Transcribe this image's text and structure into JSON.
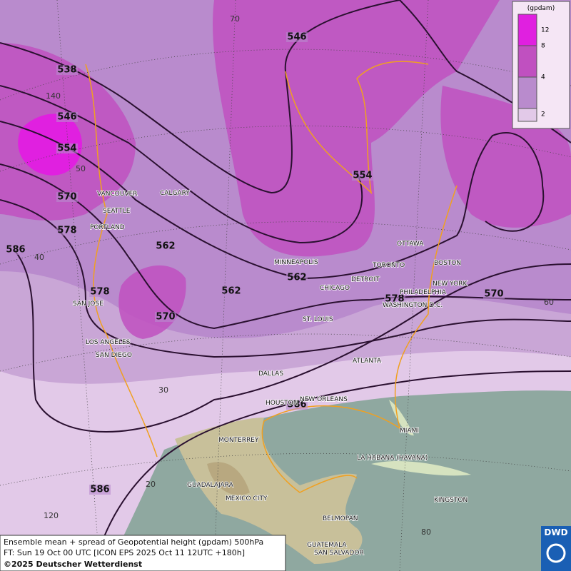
{
  "map": {
    "legend": {
      "unit": "(gpdam)",
      "levels": [
        {
          "value": 12,
          "color": "#e020e0"
        },
        {
          "value": 8,
          "color": "#c050c0"
        },
        {
          "value": 4,
          "color": "#b98bcd"
        },
        {
          "value": 2,
          "color": "#e2c9e8"
        }
      ]
    },
    "contour_labels": [
      538,
      546,
      554,
      570,
      578,
      586,
      546,
      554,
      562,
      562,
      562,
      578,
      570,
      578,
      570,
      586,
      586
    ],
    "graticule_labels": [
      70,
      140,
      50,
      40,
      30,
      20,
      120,
      80,
      60
    ],
    "cities": [
      "VANCOUVER",
      "CALGARY",
      "SEATTLE",
      "PORTLAND",
      "MINNEAPOLIS",
      "OTTAWA",
      "TORONTO",
      "BOSTON",
      "DETROIT",
      "CHICAGO",
      "NEW YORK",
      "PHILADELPHIA",
      "WASHINGTON D.C.",
      "ST. LOUIS",
      "SAN JOSE",
      "LOS ANGELES",
      "SAN DIEGO",
      "DALLAS",
      "ATLANTA",
      "HOUSTON",
      "NEW ORLEANS",
      "MIAMI",
      "MONTERREY",
      "LA HABANA (HAVANA)",
      "GUADALAJARA",
      "MEXICO CITY",
      "KINGSTON",
      "BELMOPAN",
      "GUATEMALA",
      "SAN SALVADOR"
    ],
    "footer": {
      "line1": "Ensemble mean + spread of Geopotential height (gpdam) 500hPa",
      "line2": "FT: Sun 19 Oct 00 UTC [ICON EPS 2025 Oct 11 12UTC +180h]",
      "copyright": "©2025 Deutscher Wetterdienst"
    },
    "logo": "DWD"
  }
}
